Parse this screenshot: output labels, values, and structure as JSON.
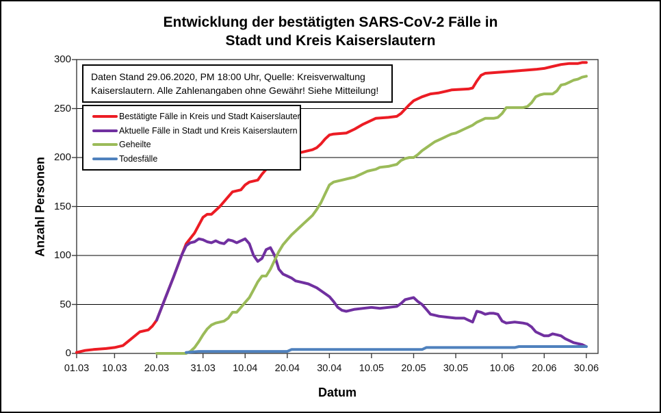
{
  "chart_data": {
    "type": "line",
    "title_line1": "Entwicklung der bestätigten SARS-CoV-2 Fälle in",
    "title_line2": "Stadt und Kreis Kaiserslautern",
    "annotation_line1": "Daten Stand 29.06.2020, PM 18:00 Uhr, Quelle: Kreisverwaltung",
    "annotation_line2": "Kaiserslautern. Alle Zahlenangaben ohne Gewähr! Siehe Mitteilung!",
    "xlabel": "Datum",
    "ylabel": "Anzahl Personen",
    "ylim": [
      0,
      300
    ],
    "y_ticks": [
      0,
      50,
      100,
      150,
      200,
      250,
      300
    ],
    "x_ticks": [
      {
        "label": "01.03",
        "day": 0
      },
      {
        "label": "10.03",
        "day": 9
      },
      {
        "label": "20.03",
        "day": 19
      },
      {
        "label": "31.03",
        "day": 30
      },
      {
        "label": "10.04",
        "day": 40
      },
      {
        "label": "20.04",
        "day": 50
      },
      {
        "label": "30.04",
        "day": 60
      },
      {
        "label": "10.05",
        "day": 70
      },
      {
        "label": "20.05",
        "day": 80
      },
      {
        "label": "30.05",
        "day": 90
      },
      {
        "label": "10.06",
        "day": 101
      },
      {
        "label": "20.06",
        "day": 111
      },
      {
        "label": "30.06",
        "day": 121
      }
    ],
    "grid": "horizontal",
    "legend_position": "inside-top-left",
    "series": [
      {
        "id": "bestaetigte-faelle",
        "name": "Bestätigte Fälle in Kreis und Stadt Kaiserslautern",
        "color": "#EC1C24",
        "points": [
          [
            0,
            1
          ],
          [
            2,
            3
          ],
          [
            4,
            4
          ],
          [
            7,
            5
          ],
          [
            9,
            6
          ],
          [
            11,
            8
          ],
          [
            13,
            15
          ],
          [
            15,
            22
          ],
          [
            17,
            24
          ],
          [
            18,
            28
          ],
          [
            19,
            34
          ],
          [
            21,
            56
          ],
          [
            23,
            78
          ],
          [
            25,
            101
          ],
          [
            26,
            112
          ],
          [
            28,
            123
          ],
          [
            30,
            139
          ],
          [
            31,
            142
          ],
          [
            32,
            142
          ],
          [
            34,
            150
          ],
          [
            36,
            160
          ],
          [
            37,
            165
          ],
          [
            39,
            167
          ],
          [
            40,
            172
          ],
          [
            41,
            175
          ],
          [
            43,
            177
          ],
          [
            44,
            183
          ],
          [
            46,
            193
          ],
          [
            48,
            199
          ],
          [
            50,
            203
          ],
          [
            53,
            205
          ],
          [
            56,
            208
          ],
          [
            57,
            210
          ],
          [
            58,
            214
          ],
          [
            59,
            219
          ],
          [
            60,
            223
          ],
          [
            61,
            224
          ],
          [
            64,
            225
          ],
          [
            66,
            229
          ],
          [
            68,
            234
          ],
          [
            70,
            238
          ],
          [
            71,
            240
          ],
          [
            74,
            241
          ],
          [
            76,
            242
          ],
          [
            77,
            245
          ],
          [
            79,
            254
          ],
          [
            80,
            258
          ],
          [
            82,
            262
          ],
          [
            84,
            265
          ],
          [
            86,
            266
          ],
          [
            88,
            268
          ],
          [
            89,
            269
          ],
          [
            93,
            270
          ],
          [
            94,
            271
          ],
          [
            95,
            278
          ],
          [
            96,
            284
          ],
          [
            97,
            286
          ],
          [
            100,
            287
          ],
          [
            103,
            288
          ],
          [
            106,
            289
          ],
          [
            109,
            290
          ],
          [
            111,
            291
          ],
          [
            113,
            293
          ],
          [
            115,
            295
          ],
          [
            117,
            296
          ],
          [
            119,
            296
          ],
          [
            120,
            297
          ],
          [
            121,
            297
          ]
        ]
      },
      {
        "id": "aktuelle-faelle",
        "name": "Aktuelle Fälle in Stadt und Kreis Kaiserslautern",
        "color": "#7030A0",
        "points": [
          [
            19,
            34
          ],
          [
            21,
            56
          ],
          [
            23,
            78
          ],
          [
            25,
            101
          ],
          [
            26,
            110
          ],
          [
            27,
            113
          ],
          [
            28,
            114
          ],
          [
            29,
            117
          ],
          [
            30,
            116
          ],
          [
            31,
            114
          ],
          [
            32,
            113
          ],
          [
            33,
            115
          ],
          [
            34,
            113
          ],
          [
            35,
            112
          ],
          [
            36,
            116
          ],
          [
            37,
            115
          ],
          [
            38,
            113
          ],
          [
            39,
            115
          ],
          [
            40,
            117
          ],
          [
            41,
            112
          ],
          [
            42,
            100
          ],
          [
            43,
            94
          ],
          [
            44,
            97
          ],
          [
            45,
            106
          ],
          [
            46,
            108
          ],
          [
            47,
            100
          ],
          [
            48,
            86
          ],
          [
            49,
            81
          ],
          [
            50,
            79
          ],
          [
            51,
            77
          ],
          [
            52,
            74
          ],
          [
            53,
            73
          ],
          [
            54,
            72
          ],
          [
            55,
            71
          ],
          [
            56,
            69
          ],
          [
            57,
            67
          ],
          [
            58,
            64
          ],
          [
            59,
            61
          ],
          [
            60,
            58
          ],
          [
            61,
            53
          ],
          [
            62,
            47
          ],
          [
            63,
            44
          ],
          [
            64,
            43
          ],
          [
            66,
            45
          ],
          [
            68,
            46
          ],
          [
            70,
            47
          ],
          [
            72,
            46
          ],
          [
            74,
            47
          ],
          [
            76,
            48
          ],
          [
            77,
            51
          ],
          [
            78,
            55
          ],
          [
            79,
            56
          ],
          [
            80,
            57
          ],
          [
            81,
            53
          ],
          [
            82,
            50
          ],
          [
            83,
            45
          ],
          [
            84,
            40
          ],
          [
            85,
            39
          ],
          [
            86,
            38
          ],
          [
            88,
            37
          ],
          [
            90,
            36
          ],
          [
            92,
            36
          ],
          [
            93,
            34
          ],
          [
            94,
            32
          ],
          [
            95,
            43
          ],
          [
            96,
            42
          ],
          [
            97,
            40
          ],
          [
            98,
            41
          ],
          [
            99,
            41
          ],
          [
            100,
            40
          ],
          [
            101,
            33
          ],
          [
            102,
            31
          ],
          [
            104,
            32
          ],
          [
            106,
            31
          ],
          [
            107,
            30
          ],
          [
            108,
            27
          ],
          [
            109,
            22
          ],
          [
            110,
            20
          ],
          [
            111,
            18
          ],
          [
            112,
            18
          ],
          [
            113,
            20
          ],
          [
            114,
            19
          ],
          [
            115,
            18
          ],
          [
            116,
            15
          ],
          [
            117,
            13
          ],
          [
            118,
            11
          ],
          [
            119,
            10
          ],
          [
            120,
            9
          ],
          [
            121,
            7
          ]
        ]
      },
      {
        "id": "geheilte",
        "name": "Geheilte",
        "color": "#9BBB59",
        "points": [
          [
            19,
            0
          ],
          [
            26,
            0
          ],
          [
            27,
            2
          ],
          [
            28,
            6
          ],
          [
            29,
            12
          ],
          [
            30,
            19
          ],
          [
            31,
            25
          ],
          [
            32,
            29
          ],
          [
            33,
            31
          ],
          [
            35,
            33
          ],
          [
            36,
            36
          ],
          [
            37,
            42
          ],
          [
            38,
            42
          ],
          [
            39,
            47
          ],
          [
            40,
            52
          ],
          [
            41,
            57
          ],
          [
            42,
            65
          ],
          [
            43,
            73
          ],
          [
            44,
            79
          ],
          [
            45,
            79
          ],
          [
            46,
            86
          ],
          [
            47,
            95
          ],
          [
            48,
            104
          ],
          [
            49,
            111
          ],
          [
            50,
            116
          ],
          [
            51,
            121
          ],
          [
            52,
            125
          ],
          [
            53,
            129
          ],
          [
            54,
            133
          ],
          [
            55,
            137
          ],
          [
            56,
            141
          ],
          [
            57,
            147
          ],
          [
            58,
            154
          ],
          [
            59,
            163
          ],
          [
            60,
            172
          ],
          [
            61,
            175
          ],
          [
            62,
            176
          ],
          [
            63,
            177
          ],
          [
            65,
            179
          ],
          [
            66,
            180
          ],
          [
            67,
            182
          ],
          [
            68,
            184
          ],
          [
            69,
            186
          ],
          [
            70,
            187
          ],
          [
            71,
            188
          ],
          [
            72,
            190
          ],
          [
            74,
            191
          ],
          [
            75,
            192
          ],
          [
            76,
            193
          ],
          [
            77,
            197
          ],
          [
            78,
            199
          ],
          [
            79,
            200
          ],
          [
            80,
            200
          ],
          [
            81,
            203
          ],
          [
            82,
            207
          ],
          [
            83,
            210
          ],
          [
            84,
            213
          ],
          [
            85,
            216
          ],
          [
            86,
            218
          ],
          [
            87,
            220
          ],
          [
            88,
            222
          ],
          [
            89,
            224
          ],
          [
            90,
            225
          ],
          [
            91,
            227
          ],
          [
            92,
            229
          ],
          [
            93,
            231
          ],
          [
            94,
            233
          ],
          [
            95,
            236
          ],
          [
            96,
            238
          ],
          [
            97,
            240
          ],
          [
            99,
            240
          ],
          [
            100,
            241
          ],
          [
            101,
            245
          ],
          [
            102,
            251
          ],
          [
            105,
            251
          ],
          [
            106,
            251
          ],
          [
            107,
            252
          ],
          [
            108,
            256
          ],
          [
            109,
            262
          ],
          [
            110,
            264
          ],
          [
            111,
            265
          ],
          [
            113,
            265
          ],
          [
            114,
            268
          ],
          [
            115,
            274
          ],
          [
            116,
            275
          ],
          [
            117,
            277
          ],
          [
            118,
            279
          ],
          [
            119,
            280
          ],
          [
            120,
            282
          ],
          [
            121,
            283
          ]
        ]
      },
      {
        "id": "todesfaelle",
        "name": "Todesfälle",
        "color": "#4F81BD",
        "points": [
          [
            26,
            1
          ],
          [
            29,
            2
          ],
          [
            50,
            2
          ],
          [
            51,
            4
          ],
          [
            82,
            4
          ],
          [
            83,
            6
          ],
          [
            104,
            6
          ],
          [
            105,
            7
          ],
          [
            121,
            7
          ]
        ]
      }
    ]
  }
}
